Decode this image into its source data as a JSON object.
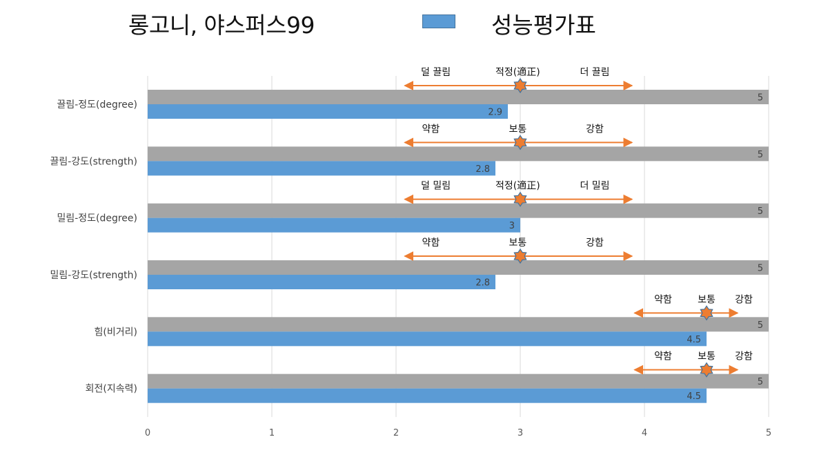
{
  "header": {
    "title": "롱고니, 야스퍼스99",
    "legend_label": "성능평가표"
  },
  "colors": {
    "value_bar": "#5B9BD5",
    "max_bar": "#A5A5A5",
    "arrow": "#ED7D31",
    "star_fill": "#ED7D31",
    "star_stroke": "#41719C",
    "grid": "#D9D9D9"
  },
  "chart_data": {
    "type": "bar",
    "orientation": "horizontal",
    "title": "롱고니, 야스퍼스99",
    "xlim": [
      0,
      5
    ],
    "xticks": [
      "0",
      "1",
      "2",
      "3",
      "4",
      "5"
    ],
    "grid": true,
    "legend": {
      "placement": "top",
      "entries": [
        "성능평가표"
      ]
    },
    "categories": [
      "끌림-정도(degree)",
      "끌림-강도(strength)",
      "밀림-정도(degree)",
      "밀림-강도(strength)",
      "힘(비거리)",
      "회전(지속력)"
    ],
    "series": [
      {
        "name": "",
        "role": "max",
        "values": [
          5,
          5,
          5,
          5,
          5,
          5
        ],
        "labels": [
          "5",
          "5",
          "5",
          "5",
          "5",
          "5"
        ]
      },
      {
        "name": "성능평가표",
        "role": "value",
        "values": [
          2.9,
          2.8,
          3,
          2.8,
          4.5,
          4.5
        ],
        "labels": [
          "2.9",
          "2.8",
          "3",
          "2.8",
          "4.5",
          "4.5"
        ]
      }
    ],
    "annotations": [
      {
        "star": 3,
        "arrow": [
          2.07,
          3.9
        ],
        "labels": [
          {
            "text": "덜 끌림",
            "x": 2.32
          },
          {
            "text": "적정(適正)",
            "x": 2.98
          },
          {
            "text": "더 끌림",
            "x": 3.6
          }
        ]
      },
      {
        "star": 3,
        "arrow": [
          2.07,
          3.9
        ],
        "labels": [
          {
            "text": "약함",
            "x": 2.28
          },
          {
            "text": "보통",
            "x": 2.98
          },
          {
            "text": "강함",
            "x": 3.6
          }
        ]
      },
      {
        "star": 3,
        "arrow": [
          2.07,
          3.9
        ],
        "labels": [
          {
            "text": "덜 밀림",
            "x": 2.32
          },
          {
            "text": "적정(適正)",
            "x": 2.98
          },
          {
            "text": "더 밀림",
            "x": 3.6
          }
        ]
      },
      {
        "star": 3,
        "arrow": [
          2.07,
          3.9
        ],
        "labels": [
          {
            "text": "약함",
            "x": 2.28
          },
          {
            "text": "보통",
            "x": 2.98
          },
          {
            "text": "강함",
            "x": 3.6
          }
        ]
      },
      {
        "star": 4.5,
        "arrow": [
          3.92,
          4.75
        ],
        "labels": [
          {
            "text": "약함",
            "x": 4.15
          },
          {
            "text": "보통",
            "x": 4.5
          },
          {
            "text": "강함",
            "x": 4.8
          }
        ]
      },
      {
        "star": 4.5,
        "arrow": [
          3.92,
          4.75
        ],
        "labels": [
          {
            "text": "약함",
            "x": 4.15
          },
          {
            "text": "보통",
            "x": 4.5
          },
          {
            "text": "강함",
            "x": 4.8
          }
        ]
      }
    ]
  }
}
